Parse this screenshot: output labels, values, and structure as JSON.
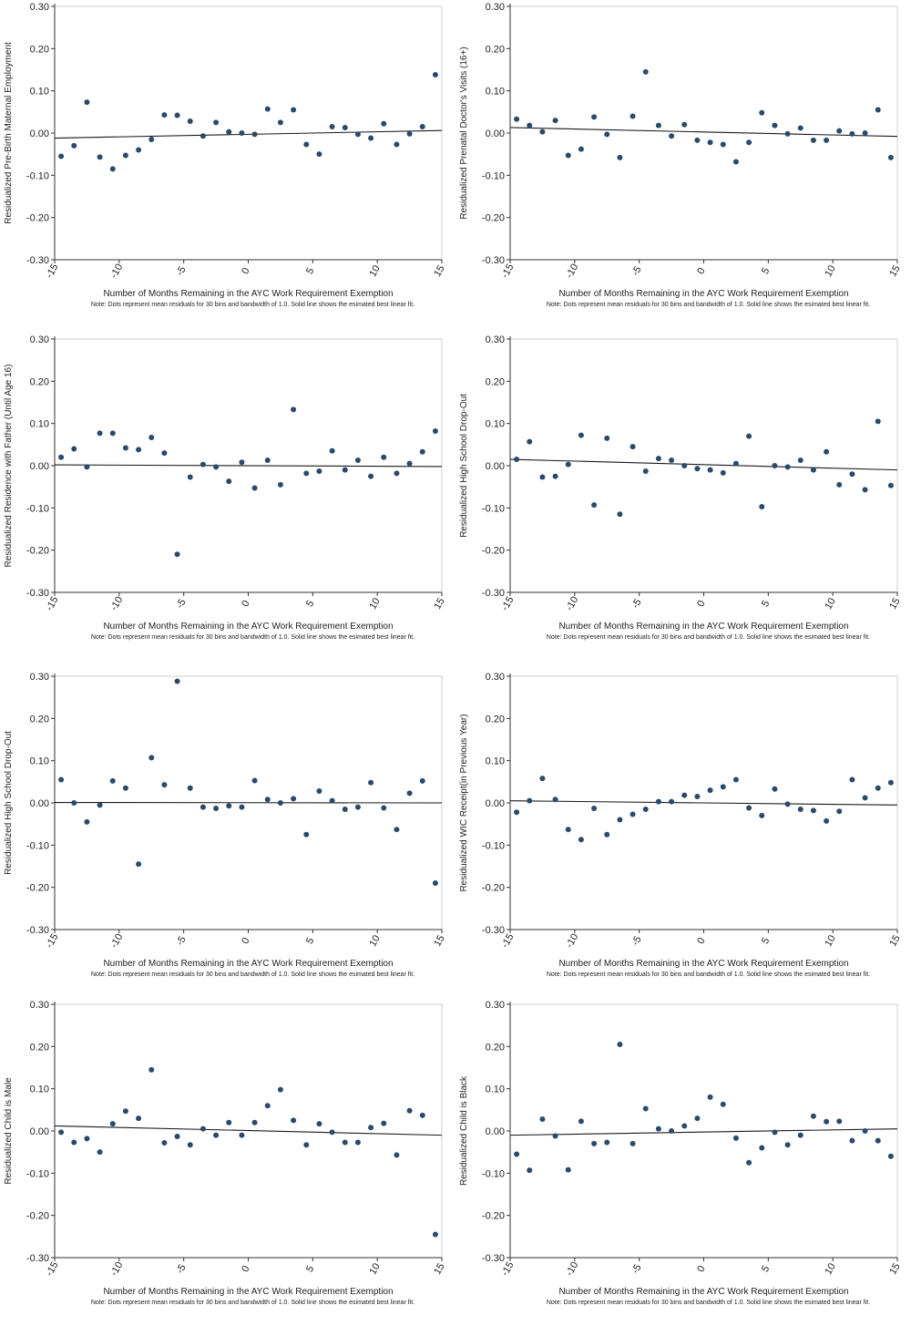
{
  "chart_data": [
    {
      "type": "scatter",
      "ylabel": "Residualized Pre-Birth Maternal Employment",
      "xlabel": "Number of Months Remaining in the AYC Work Requirement Exemption",
      "note": "Note: Dots represent mean residuals for 30 bins and bandwidth of 1.0. Solid line shows the esimated best linear fit.",
      "xlim": [
        -15,
        15
      ],
      "ylim": [
        -0.3,
        0.3
      ],
      "x_ticks": [
        -15,
        -10,
        -5,
        0,
        5,
        10,
        15
      ],
      "x_tick_labels": [
        "-15",
        "-10",
        "-5",
        "0",
        "5",
        "10",
        "15"
      ],
      "y_ticks": [
        0.3,
        0.2,
        0.1,
        0.0,
        -0.1,
        -0.2,
        -0.3
      ],
      "y_tick_labels": [
        "0.30",
        "0.20",
        "0.10",
        "0.00",
        "-0.10",
        "-0.20",
        "-0.30"
      ],
      "x": [
        -14.5,
        -13.5,
        -12.5,
        -11.5,
        -10.5,
        -9.5,
        -8.5,
        -7.5,
        -6.5,
        -5.5,
        -4.5,
        -3.5,
        -2.5,
        -1.5,
        -0.5,
        0.5,
        1.5,
        2.5,
        3.5,
        4.5,
        5.5,
        6.5,
        7.5,
        8.5,
        9.5,
        10.5,
        11.5,
        12.5,
        13.5,
        14.5
      ],
      "y": [
        -0.055,
        -0.03,
        0.073,
        -0.057,
        -0.085,
        -0.053,
        -0.04,
        -0.015,
        0.043,
        0.042,
        0.028,
        -0.007,
        0.025,
        0.003,
        0.0,
        -0.003,
        0.057,
        0.025,
        0.055,
        -0.027,
        -0.05,
        0.015,
        0.013,
        -0.003,
        -0.012,
        0.022,
        -0.027,
        -0.002,
        0.015,
        0.138
      ],
      "fit": {
        "x": [
          -15,
          15
        ],
        "y": [
          -0.012,
          0.006
        ]
      },
      "marker_color": "#2b4a6a",
      "line_color": "#1a1a1a"
    },
    {
      "type": "scatter",
      "ylabel": "Residualized Prenatal Doctor's Visits (16+)",
      "xlabel": "Number of Months Remaining in the AYC Work Requirement Exemption",
      "note": "Note: Dots represent mean residuals for 30 bins and bandwidth of 1.0. Solid line shows the esimated best linear fit.",
      "xlim": [
        -15,
        15
      ],
      "ylim": [
        -0.3,
        0.3
      ],
      "x_ticks": [
        -15,
        -10,
        -5,
        0,
        5,
        10,
        15
      ],
      "x_tick_labels": [
        "-15",
        "-10",
        "-5",
        "0",
        "5",
        "10",
        "15"
      ],
      "y_ticks": [
        0.3,
        0.2,
        0.1,
        0.0,
        -0.1,
        -0.2,
        -0.3
      ],
      "y_tick_labels": [
        "0.30",
        "0.20",
        "0.10",
        "0.00",
        "-0.10",
        "-0.20",
        "-0.30"
      ],
      "x": [
        -14.5,
        -13.5,
        -12.5,
        -11.5,
        -10.5,
        -9.5,
        -8.5,
        -7.5,
        -6.5,
        -5.5,
        -4.5,
        -3.5,
        -2.5,
        -1.5,
        -0.5,
        0.5,
        1.5,
        2.5,
        3.5,
        4.5,
        5.5,
        6.5,
        7.5,
        8.5,
        9.5,
        10.5,
        11.5,
        12.5,
        13.5,
        14.5
      ],
      "y": [
        0.033,
        0.018,
        0.003,
        0.03,
        -0.053,
        -0.038,
        0.038,
        -0.003,
        -0.058,
        0.04,
        0.145,
        0.018,
        -0.007,
        0.02,
        -0.017,
        -0.022,
        -0.027,
        -0.068,
        -0.022,
        0.048,
        0.018,
        -0.002,
        0.012,
        -0.017,
        -0.017,
        0.005,
        -0.002,
        0.0,
        0.055,
        -0.058
      ],
      "fit": {
        "x": [
          -15,
          15
        ],
        "y": [
          0.013,
          -0.008
        ]
      },
      "marker_color": "#2b4a6a",
      "line_color": "#1a1a1a"
    },
    {
      "type": "scatter",
      "ylabel": "Residualized Residence with Father (Until Age 16)",
      "xlabel": "Number of Months Remaining in the AYC Work Requirement Exemption",
      "note": "Note: Dots represent mean residuals for 30 bins and bandwidth of 1.0. Solid line shows the esimated best linear fit.",
      "xlim": [
        -15,
        15
      ],
      "ylim": [
        -0.3,
        0.3
      ],
      "x_ticks": [
        -15,
        -10,
        -5,
        0,
        5,
        10,
        15
      ],
      "x_tick_labels": [
        "-15",
        "-10",
        "-5",
        "0",
        "5",
        "10",
        "15"
      ],
      "y_ticks": [
        0.3,
        0.2,
        0.1,
        0.0,
        -0.1,
        -0.2,
        -0.3
      ],
      "y_tick_labels": [
        "0.30",
        "0.20",
        "0.10",
        "0.00",
        "-0.10",
        "-0.20",
        "-0.30"
      ],
      "x": [
        -14.5,
        -13.5,
        -12.5,
        -11.5,
        -10.5,
        -9.5,
        -8.5,
        -7.5,
        -6.5,
        -5.5,
        -4.5,
        -3.5,
        -2.5,
        -1.5,
        -0.5,
        0.5,
        1.5,
        2.5,
        3.5,
        4.5,
        5.5,
        6.5,
        7.5,
        8.5,
        9.5,
        10.5,
        11.5,
        12.5,
        13.5,
        14.5
      ],
      "y": [
        0.02,
        0.04,
        -0.003,
        0.077,
        0.077,
        0.042,
        0.038,
        0.067,
        0.03,
        -0.21,
        -0.027,
        0.003,
        -0.003,
        -0.037,
        0.008,
        -0.053,
        0.013,
        -0.045,
        0.133,
        -0.018,
        -0.013,
        0.035,
        -0.01,
        0.013,
        -0.025,
        0.02,
        -0.018,
        0.005,
        0.033,
        0.082
      ],
      "fit": {
        "x": [
          -15,
          15
        ],
        "y": [
          0.002,
          -0.002
        ]
      },
      "marker_color": "#2b4a6a",
      "line_color": "#1a1a1a"
    },
    {
      "type": "scatter",
      "ylabel": "Residualized High School Drop-Out",
      "xlabel": "Number of Months Remaining in the AYC Work Requirement Exemption",
      "note": "Note: Dots represent mean residuals for 30 bins and bandwidth of 1.0. Solid line shows the esimated best linear fit.",
      "xlim": [
        -15,
        15
      ],
      "ylim": [
        -0.3,
        0.3
      ],
      "x_ticks": [
        -15,
        -10,
        -5,
        0,
        5,
        10,
        15
      ],
      "x_tick_labels": [
        "-15",
        "-10",
        "-5",
        "0",
        "5",
        "10",
        "15"
      ],
      "y_ticks": [
        0.3,
        0.2,
        0.1,
        0.0,
        -0.1,
        -0.2,
        -0.3
      ],
      "y_tick_labels": [
        "0.30",
        "0.20",
        "0.10",
        "0.00",
        "-0.10",
        "-0.20",
        "-0.30"
      ],
      "x": [
        -14.5,
        -13.5,
        -12.5,
        -11.5,
        -10.5,
        -9.5,
        -8.5,
        -7.5,
        -6.5,
        -5.5,
        -4.5,
        -3.5,
        -2.5,
        -1.5,
        -0.5,
        0.5,
        1.5,
        2.5,
        3.5,
        4.5,
        5.5,
        6.5,
        7.5,
        8.5,
        9.5,
        10.5,
        11.5,
        12.5,
        13.5,
        14.5
      ],
      "y": [
        0.015,
        0.057,
        -0.027,
        -0.025,
        0.003,
        0.072,
        -0.093,
        0.065,
        -0.115,
        0.045,
        -0.013,
        0.017,
        0.013,
        0.0,
        -0.007,
        -0.01,
        -0.017,
        0.005,
        0.07,
        -0.097,
        0.0,
        -0.003,
        0.013,
        -0.01,
        0.033,
        -0.045,
        -0.02,
        -0.057,
        0.105,
        -0.047
      ],
      "fit": {
        "x": [
          -15,
          15
        ],
        "y": [
          0.015,
          -0.01
        ]
      },
      "marker_color": "#2b4a6a",
      "line_color": "#1a1a1a"
    },
    {
      "type": "scatter",
      "ylabel": "Residualized High School Drop-Out",
      "xlabel": "Number of Months Remaining in the AYC Work Requirement Exemption",
      "note": "Note: Dots represent mean residuals for 30 bins and bandwidth of 1.0. Solid line shows the esimated best linear fit.",
      "xlim": [
        -15,
        15
      ],
      "ylim": [
        -0.3,
        0.3
      ],
      "x_ticks": [
        -15,
        -10,
        -5,
        0,
        5,
        10,
        15
      ],
      "x_tick_labels": [
        "-15",
        "-10",
        "-5",
        "0",
        "5",
        "10",
        "15"
      ],
      "y_ticks": [
        0.3,
        0.2,
        0.1,
        0.0,
        -0.1,
        -0.2,
        -0.3
      ],
      "y_tick_labels": [
        "0.30",
        "0.20",
        "0.10",
        "0.00",
        "-0.10",
        "-0.20",
        "-0.30"
      ],
      "x": [
        -14.5,
        -13.5,
        -12.5,
        -11.5,
        -10.5,
        -9.5,
        -8.5,
        -7.5,
        -6.5,
        -5.5,
        -4.5,
        -3.5,
        -2.5,
        -1.5,
        -0.5,
        0.5,
        1.5,
        2.5,
        3.5,
        4.5,
        5.5,
        6.5,
        7.5,
        8.5,
        9.5,
        10.5,
        11.5,
        12.5,
        13.5,
        14.5
      ],
      "y": [
        0.055,
        0.0,
        -0.045,
        -0.005,
        0.052,
        0.035,
        -0.145,
        0.107,
        0.043,
        0.288,
        0.035,
        -0.01,
        -0.013,
        -0.007,
        -0.01,
        0.053,
        0.008,
        0.0,
        0.01,
        -0.075,
        0.028,
        0.005,
        -0.015,
        -0.01,
        0.048,
        -0.012,
        -0.063,
        0.023,
        0.052,
        -0.19
      ],
      "fit": {
        "x": [
          -15,
          15
        ],
        "y": [
          0.001,
          0.0
        ]
      },
      "marker_color": "#2b4a6a",
      "line_color": "#1a1a1a"
    },
    {
      "type": "scatter",
      "ylabel": "Residualized WIC Receipt(in Previous Year)",
      "xlabel": "Number of Months Remaining in the AYC Work Requirement Exemption",
      "note": "Note: Dots represent mean residuals for 30 bins and bandwidth of 1.0. Solid line shows the esimated best linear fit.",
      "xlim": [
        -15,
        15
      ],
      "ylim": [
        -0.3,
        0.3
      ],
      "x_ticks": [
        -15,
        -10,
        -5,
        0,
        5,
        10,
        15
      ],
      "x_tick_labels": [
        "-15",
        "-10",
        "-5",
        "0",
        "5",
        "10",
        "15"
      ],
      "y_ticks": [
        0.3,
        0.2,
        0.1,
        0.0,
        -0.1,
        -0.2,
        -0.3
      ],
      "y_tick_labels": [
        "0.30",
        "0.20",
        "0.10",
        "0.00",
        "-0.10",
        "-0.20",
        "-0.30"
      ],
      "x": [
        -14.5,
        -13.5,
        -12.5,
        -11.5,
        -10.5,
        -9.5,
        -8.5,
        -7.5,
        -6.5,
        -5.5,
        -4.5,
        -3.5,
        -2.5,
        -1.5,
        -0.5,
        0.5,
        1.5,
        2.5,
        3.5,
        4.5,
        5.5,
        6.5,
        7.5,
        8.5,
        9.5,
        10.5,
        11.5,
        12.5,
        13.5,
        14.5
      ],
      "y": [
        -0.022,
        0.005,
        0.058,
        0.008,
        -0.063,
        -0.087,
        -0.013,
        -0.075,
        -0.04,
        -0.027,
        -0.015,
        0.003,
        0.003,
        0.018,
        0.015,
        0.03,
        0.038,
        0.055,
        -0.012,
        -0.03,
        0.033,
        -0.003,
        -0.015,
        -0.018,
        -0.043,
        -0.02,
        0.055,
        0.012,
        0.035,
        0.048
      ],
      "fit": {
        "x": [
          -15,
          15
        ],
        "y": [
          0.005,
          -0.005
        ]
      },
      "marker_color": "#2b4a6a",
      "line_color": "#1a1a1a"
    },
    {
      "type": "scatter",
      "ylabel": "Residualized Child is Male",
      "xlabel": "Number of Months Remaining in the AYC Work Requirement Exemption",
      "note": "Note: Dots represent mean residuals for 30 bins and bandwidth of 1.0. Solid line shows the esimated best linear fit.",
      "xlim": [
        -15,
        15
      ],
      "ylim": [
        -0.3,
        0.3
      ],
      "x_ticks": [
        -15,
        -10,
        -5,
        0,
        5,
        10,
        15
      ],
      "x_tick_labels": [
        "-15",
        "-10",
        "-5",
        "0",
        "5",
        "10",
        "15"
      ],
      "y_ticks": [
        0.3,
        0.2,
        0.1,
        0.0,
        -0.1,
        -0.2,
        -0.3
      ],
      "y_tick_labels": [
        "0.30",
        "0.20",
        "0.10",
        "0.00",
        "-0.10",
        "-0.20",
        "-0.30"
      ],
      "x": [
        -14.5,
        -13.5,
        -12.5,
        -11.5,
        -10.5,
        -9.5,
        -8.5,
        -7.5,
        -6.5,
        -5.5,
        -4.5,
        -3.5,
        -2.5,
        -1.5,
        -0.5,
        0.5,
        1.5,
        2.5,
        3.5,
        4.5,
        5.5,
        6.5,
        7.5,
        8.5,
        9.5,
        10.5,
        11.5,
        12.5,
        13.5,
        14.5
      ],
      "y": [
        -0.003,
        -0.027,
        -0.018,
        -0.05,
        0.017,
        0.047,
        0.03,
        0.145,
        -0.028,
        -0.013,
        -0.033,
        0.005,
        -0.01,
        0.02,
        -0.01,
        0.02,
        0.06,
        0.098,
        0.025,
        -0.033,
        0.017,
        -0.003,
        -0.027,
        -0.027,
        0.008,
        0.018,
        -0.057,
        0.048,
        0.037,
        -0.245
      ],
      "fit": {
        "x": [
          -15,
          15
        ],
        "y": [
          0.012,
          -0.01
        ]
      },
      "marker_color": "#2b4a6a",
      "line_color": "#1a1a1a"
    },
    {
      "type": "scatter",
      "ylabel": "Residualized Child is Black",
      "xlabel": "Number of Months Remaining in the AYC Work Requirement Exemption",
      "note": "Note: Dots represent mean residuals for 30 bins and bandwidth of 1.0. Solid line shows the esimated best linear fit.",
      "xlim": [
        -15,
        15
      ],
      "ylim": [
        -0.3,
        0.3
      ],
      "x_ticks": [
        -15,
        -10,
        -5,
        0,
        5,
        10,
        15
      ],
      "x_tick_labels": [
        "-15",
        "-10",
        "-5",
        "0",
        "5",
        "10",
        "15"
      ],
      "y_ticks": [
        0.3,
        0.2,
        0.1,
        0.0,
        -0.1,
        -0.2,
        -0.3
      ],
      "y_tick_labels": [
        "0.30",
        "0.20",
        "0.10",
        "0.00",
        "-0.10",
        "-0.20",
        "-0.30"
      ],
      "x": [
        -14.5,
        -13.5,
        -12.5,
        -11.5,
        -10.5,
        -9.5,
        -8.5,
        -7.5,
        -6.5,
        -5.5,
        -4.5,
        -3.5,
        -2.5,
        -1.5,
        -0.5,
        0.5,
        1.5,
        2.5,
        3.5,
        4.5,
        5.5,
        6.5,
        7.5,
        8.5,
        9.5,
        10.5,
        11.5,
        12.5,
        13.5,
        14.5
      ],
      "y": [
        -0.055,
        -0.093,
        0.028,
        -0.012,
        -0.092,
        0.023,
        -0.03,
        -0.027,
        0.205,
        -0.03,
        0.053,
        0.005,
        0.0,
        0.012,
        0.03,
        0.08,
        0.063,
        -0.017,
        -0.075,
        -0.04,
        -0.003,
        -0.033,
        -0.01,
        0.035,
        0.022,
        0.023,
        -0.023,
        0.0,
        -0.023,
        -0.06
      ],
      "fit": {
        "x": [
          -15,
          15
        ],
        "y": [
          -0.01,
          0.005
        ]
      },
      "marker_color": "#2b4a6a",
      "line_color": "#1a1a1a"
    }
  ]
}
